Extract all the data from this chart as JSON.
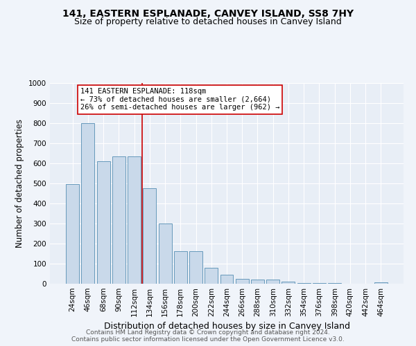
{
  "title": "141, EASTERN ESPLANADE, CANVEY ISLAND, SS8 7HY",
  "subtitle": "Size of property relative to detached houses in Canvey Island",
  "xlabel": "Distribution of detached houses by size in Canvey Island",
  "ylabel": "Number of detached properties",
  "categories": [
    "24sqm",
    "46sqm",
    "68sqm",
    "90sqm",
    "112sqm",
    "134sqm",
    "156sqm",
    "178sqm",
    "200sqm",
    "222sqm",
    "244sqm",
    "266sqm",
    "288sqm",
    "310sqm",
    "332sqm",
    "354sqm",
    "376sqm",
    "398sqm",
    "420sqm",
    "442sqm",
    "464sqm"
  ],
  "values": [
    495,
    800,
    610,
    635,
    635,
    475,
    300,
    163,
    163,
    80,
    46,
    25,
    22,
    20,
    12,
    5,
    3,
    2,
    1,
    1,
    8
  ],
  "bar_color": "#c9d9ea",
  "bar_edge_color": "#6699bb",
  "background_color": "#e8eef6",
  "grid_color": "#ffffff",
  "annotation_text": "141 EASTERN ESPLANADE: 118sqm\n← 73% of detached houses are smaller (2,664)\n26% of semi-detached houses are larger (962) →",
  "vline_position": 4.5,
  "vline_color": "#cc0000",
  "annotation_box_color": "#ffffff",
  "annotation_box_edge": "#cc0000",
  "ylim": [
    0,
    1000
  ],
  "yticks": [
    0,
    100,
    200,
    300,
    400,
    500,
    600,
    700,
    800,
    900,
    1000
  ],
  "footer1": "Contains HM Land Registry data © Crown copyright and database right 2024.",
  "footer2": "Contains public sector information licensed under the Open Government Licence v3.0.",
  "title_fontsize": 10,
  "subtitle_fontsize": 9,
  "xlabel_fontsize": 9,
  "ylabel_fontsize": 8.5,
  "tick_fontsize": 7.5,
  "annotation_fontsize": 7.5,
  "footer_fontsize": 6.5
}
